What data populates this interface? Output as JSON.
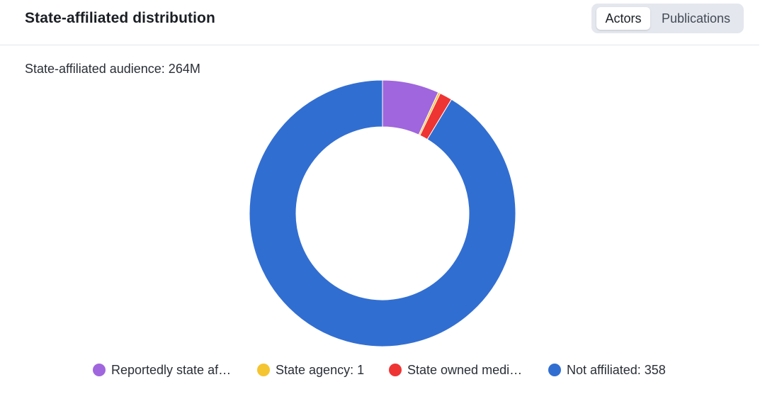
{
  "header": {
    "title": "State-affiliated distribution",
    "toggle": {
      "active_label": "Actors",
      "inactive_label": "Publications"
    }
  },
  "summary": {
    "audience_text": "State-affiliated audience: 264M"
  },
  "colors": {
    "reportedly": "#a066dd",
    "state_agency": "#f5c431",
    "state_owned": "#ef3434",
    "not_affiliated": "#316ed1"
  },
  "chart_data": {
    "type": "pie",
    "donut": true,
    "series": [
      {
        "name": "Reportedly state af…",
        "value": 27,
        "color": "#a066dd"
      },
      {
        "name": "State agency: 1",
        "value": 1,
        "color": "#f5c431"
      },
      {
        "name": "State owned medi…",
        "value": 6,
        "color": "#ef3434"
      },
      {
        "name": "Not affiliated: 358",
        "value": 358,
        "color": "#316ed1"
      }
    ]
  }
}
